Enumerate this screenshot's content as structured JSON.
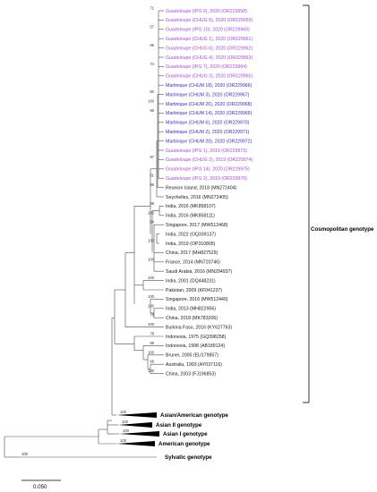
{
  "colors": {
    "guadeloupe": "#a34fd6",
    "martinique": "#3a2fb0",
    "black": "#1a1a1a"
  },
  "tree": {
    "taxa": [
      {
        "label": "Guadeloupe (IPG 6), 2020 (OR229958)",
        "group": "guadeloupe"
      },
      {
        "label": "Guadeloupe (CHUG 6), 2020 (OR229959)",
        "group": "guadeloupe"
      },
      {
        "label": "Guadeloupe (IPG 10), 2020 (OR229960)",
        "group": "guadeloupe"
      },
      {
        "label": "Guadeloupe (CHUG 1), 2020 (OR229961)",
        "group": "guadeloupe"
      },
      {
        "label": "Guadeloupe (CHUG 6), 2020 (OR229962)",
        "group": "guadeloupe"
      },
      {
        "label": "Guadeloupe (CHUG 4), 2020 (OR229963)",
        "group": "guadeloupe"
      },
      {
        "label": "Guadeloupe (IPG 7), 2020 (OR229964)",
        "group": "guadeloupe"
      },
      {
        "label": "Guadeloupe (CHUG 3), 2020 (OR229965)",
        "group": "guadeloupe"
      },
      {
        "label": "Martinique (CHUM 18), 2020 (OR229966)",
        "group": "martinique"
      },
      {
        "label": "Martinique (CHUM 3), 2020 (OR229967)",
        "group": "martinique"
      },
      {
        "label": "Martinique (CHUM 26), 2020 (OR229968)",
        "group": "martinique"
      },
      {
        "label": "Martinique (CHUM 14), 2020 (OR229969)",
        "group": "martinique"
      },
      {
        "label": "Martinique (CHUM 6), 2020 (OR229970)",
        "group": "martinique"
      },
      {
        "label": "Martinique (CHUM 2), 2020 (OR229971)",
        "group": "martinique"
      },
      {
        "label": "Martinique (CHUM 20), 2020 (OR229972)",
        "group": "martinique"
      },
      {
        "label": "Guadeloupe (IPG 1), 2019 (OR229973)",
        "group": "guadeloupe"
      },
      {
        "label": "Guadeloupe (CHUG 2), 2019 (OR229974)",
        "group": "guadeloupe"
      },
      {
        "label": "Guadeloupe (IPG 14), 2020 (OR229975)",
        "group": "guadeloupe"
      },
      {
        "label": "Guadeloupe (IPG 2), 2019 (OR229976)",
        "group": "guadeloupe"
      },
      {
        "label": "Reunion Island, 2018 (MN272404)",
        "group": "black"
      },
      {
        "label": "Seychelles, 2016 (MN272405)",
        "group": "black"
      },
      {
        "label": "India, 2016 (MK858107)",
        "group": "black"
      },
      {
        "label": "India, 2016 (MK858111)",
        "group": "black"
      },
      {
        "label": "Singapore, 2017 (MW512468)",
        "group": "black"
      },
      {
        "label": "India, 2022 (OQ339137)",
        "group": "black"
      },
      {
        "label": "India, 2019 (OP310805)",
        "group": "black"
      },
      {
        "label": "China, 2017 (MH827529)",
        "group": "black"
      },
      {
        "label": "France, 2014 (MN720746)",
        "group": "black"
      },
      {
        "label": "Saudi Arabia, 2016 (MN294937)",
        "group": "black"
      },
      {
        "label": "India, 2001 (DQ448231)",
        "group": "black"
      },
      {
        "label": "Pakistan, 2009 (KF041237)",
        "group": "black"
      },
      {
        "label": "Singapore, 2016 (MW512449)",
        "group": "black"
      },
      {
        "label": "India, 2013 (MH822956)",
        "group": "black"
      },
      {
        "label": "China, 2018 (MK783206)",
        "group": "black"
      },
      {
        "label": "Burkina Faso, 2016 (KY627763)",
        "group": "black"
      },
      {
        "label": "Indonesia, 1975 (GQ398258)",
        "group": "black"
      },
      {
        "label": "Indonesia, 1998 (AB189124)",
        "group": "black"
      },
      {
        "label": "Brunei, 2005 (EU179857)",
        "group": "black"
      },
      {
        "label": "Australia, 1993 (AY037116)",
        "group": "black"
      },
      {
        "label": "China, 2003 (FJ196853)",
        "group": "black"
      }
    ],
    "bootstrap": [
      {
        "value": "71",
        "row": 0
      },
      {
        "value": "57",
        "row": 2
      },
      {
        "value": "85",
        "row": 4
      },
      {
        "value": "74",
        "row": 6
      },
      {
        "value": "80",
        "row": 9
      },
      {
        "value": "100",
        "row": 10
      },
      {
        "value": "96",
        "row": 11
      },
      {
        "value": "97",
        "row": 16
      },
      {
        "value": "81",
        "row": 18
      },
      {
        "value": "96",
        "row": 19
      },
      {
        "value": "99",
        "row": 21
      },
      {
        "value": "100",
        "row": 22
      },
      {
        "value": "64",
        "row": 23
      },
      {
        "value": "100",
        "row": 25
      },
      {
        "value": "100",
        "row": 27
      },
      {
        "value": "100",
        "row": 29
      },
      {
        "value": "100",
        "row": 31
      },
      {
        "value": "100",
        "row": 32
      },
      {
        "value": "78",
        "row": 33
      },
      {
        "value": "100",
        "row": 34
      },
      {
        "value": "78",
        "row": 35
      },
      {
        "value": "99",
        "row": 36
      },
      {
        "value": "100",
        "row": 37
      },
      {
        "value": "99",
        "row": 38
      },
      {
        "value": "100",
        "row": 39
      },
      {
        "value": "100",
        "row": 40
      }
    ],
    "collapsed": [
      {
        "label": "Asian/American genotype",
        "boot": "100"
      },
      {
        "label": "Asian II genotype",
        "boot": "100"
      },
      {
        "label": "Asian I genotype",
        "boot": "100"
      },
      {
        "label": "American genotype",
        "boot": "100"
      },
      {
        "label": "Sylvatic genotype",
        "boot": "100"
      }
    ],
    "cosmopolitan_label": "Cosmopolitan genotype",
    "scale_label": "0.050"
  }
}
